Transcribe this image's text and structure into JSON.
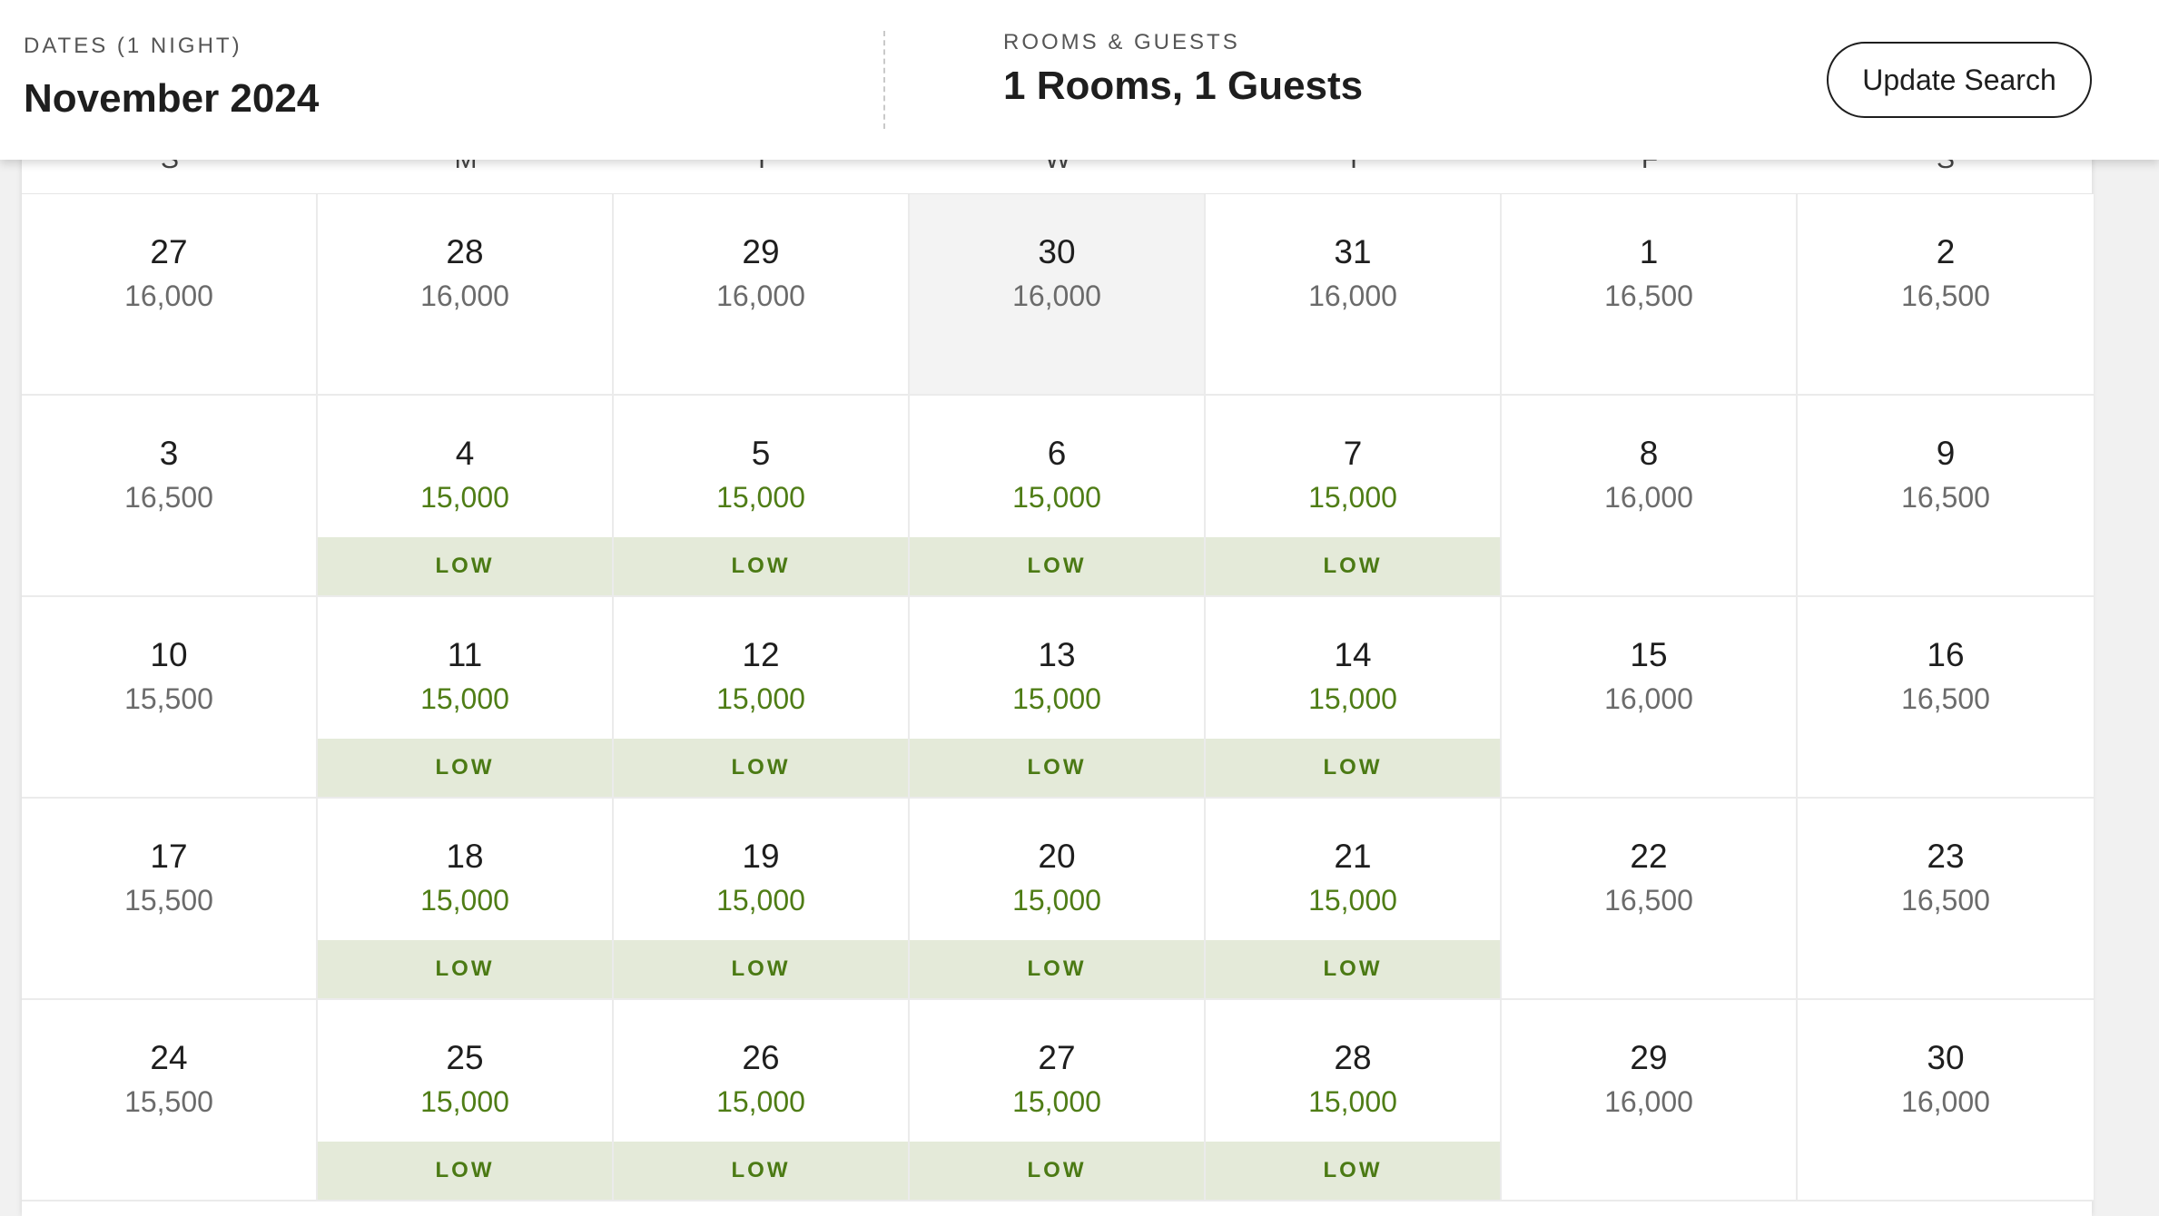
{
  "header": {
    "dates_label": "DATES (1 NIGHT)",
    "dates_value": "November 2024",
    "rooms_label": "ROOMS & GUESTS",
    "rooms_value": "1 Rooms, 1 Guests",
    "update_button": "Update Search"
  },
  "calendar": {
    "weekdays": [
      "S",
      "M",
      "T",
      "W",
      "T",
      "F",
      "S"
    ],
    "low_label": "LOW",
    "weeks": [
      [
        {
          "day": "27",
          "price": "16,000",
          "low": false
        },
        {
          "day": "28",
          "price": "16,000",
          "low": false
        },
        {
          "day": "29",
          "price": "16,000",
          "low": false
        },
        {
          "day": "30",
          "price": "16,000",
          "low": false,
          "selected": true
        },
        {
          "day": "31",
          "price": "16,000",
          "low": false
        },
        {
          "day": "1",
          "price": "16,500",
          "low": false
        },
        {
          "day": "2",
          "price": "16,500",
          "low": false
        }
      ],
      [
        {
          "day": "3",
          "price": "16,500",
          "low": false
        },
        {
          "day": "4",
          "price": "15,000",
          "low": true
        },
        {
          "day": "5",
          "price": "15,000",
          "low": true
        },
        {
          "day": "6",
          "price": "15,000",
          "low": true
        },
        {
          "day": "7",
          "price": "15,000",
          "low": true
        },
        {
          "day": "8",
          "price": "16,000",
          "low": false
        },
        {
          "day": "9",
          "price": "16,500",
          "low": false
        }
      ],
      [
        {
          "day": "10",
          "price": "15,500",
          "low": false
        },
        {
          "day": "11",
          "price": "15,000",
          "low": true
        },
        {
          "day": "12",
          "price": "15,000",
          "low": true
        },
        {
          "day": "13",
          "price": "15,000",
          "low": true
        },
        {
          "day": "14",
          "price": "15,000",
          "low": true
        },
        {
          "day": "15",
          "price": "16,000",
          "low": false
        },
        {
          "day": "16",
          "price": "16,500",
          "low": false
        }
      ],
      [
        {
          "day": "17",
          "price": "15,500",
          "low": false
        },
        {
          "day": "18",
          "price": "15,000",
          "low": true
        },
        {
          "day": "19",
          "price": "15,000",
          "low": true
        },
        {
          "day": "20",
          "price": "15,000",
          "low": true
        },
        {
          "day": "21",
          "price": "15,000",
          "low": true
        },
        {
          "day": "22",
          "price": "16,500",
          "low": false
        },
        {
          "day": "23",
          "price": "16,500",
          "low": false
        }
      ],
      [
        {
          "day": "24",
          "price": "15,500",
          "low": false
        },
        {
          "day": "25",
          "price": "15,000",
          "low": true
        },
        {
          "day": "26",
          "price": "15,000",
          "low": true
        },
        {
          "day": "27",
          "price": "15,000",
          "low": true
        },
        {
          "day": "28",
          "price": "15,000",
          "low": true
        },
        {
          "day": "29",
          "price": "16,000",
          "low": false
        },
        {
          "day": "30",
          "price": "16,000",
          "low": false
        }
      ]
    ]
  },
  "colors": {
    "low_text": "#4f7d16",
    "low_badge_bg": "#e4ead9",
    "selected_bg": "#f3f3f3"
  }
}
